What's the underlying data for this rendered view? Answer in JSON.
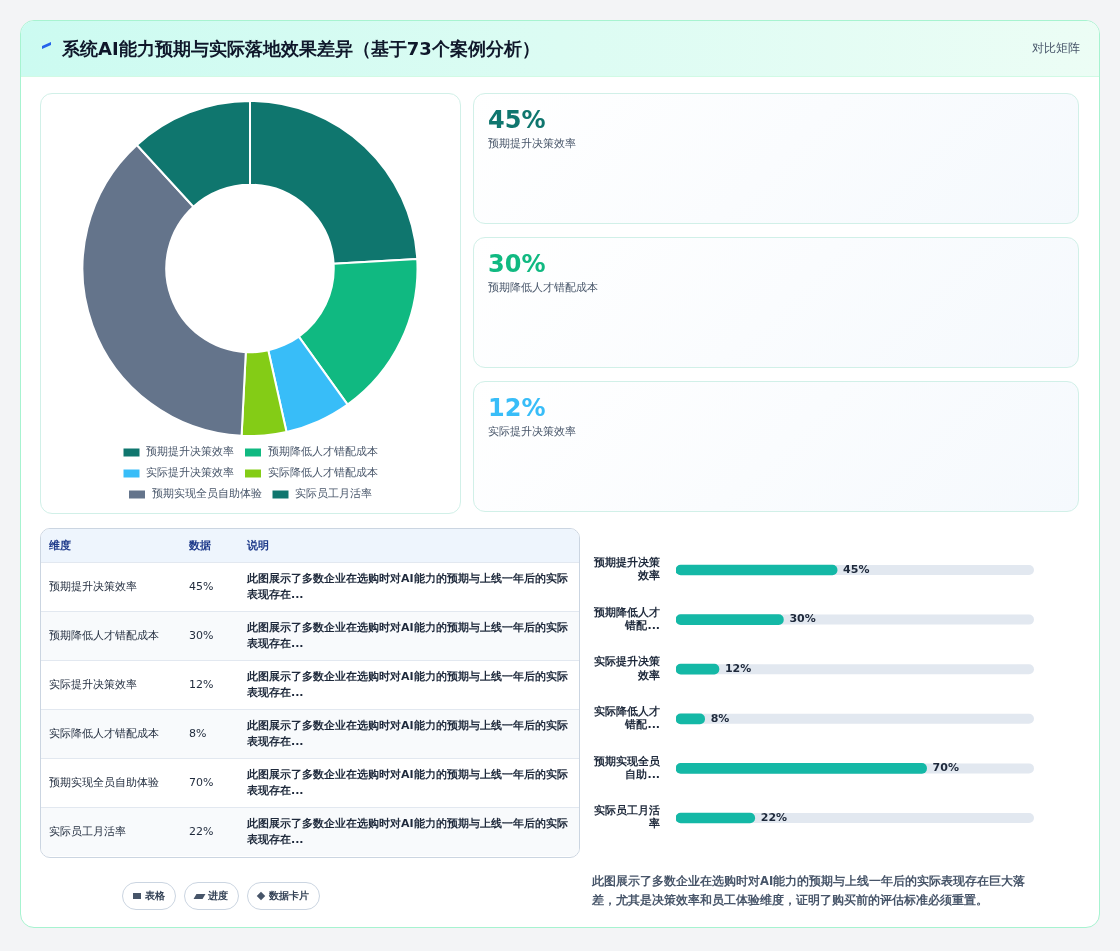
{
  "chart_data": [
    {
      "type": "other",
      "title": "系统AI能力预期与实际落地效果差异（基于73个案例分析）",
      "subtitle": "对比矩阵"
    },
    {
      "type": "donut",
      "categories": [
        "预期提升决策效率",
        "预期降低人才错配成本",
        "实际提升决策效率",
        "实际降低人才错配成本",
        "预期实现全员自助体验",
        "实际员工月活率"
      ],
      "values": [
        24.1,
        16.0,
        6.4,
        4.3,
        37.4,
        11.8
      ],
      "colors": [
        "#0f766e",
        "#10b981",
        "#38bdf8",
        "#84cc16",
        "#64748b",
        "#0f766e"
      ],
      "legend": "bottom"
    },
    {
      "type": "other",
      "annotations": [
        "45%",
        "预期提升决策效率",
        "30%",
        "预期降低人才错配成本",
        "12%",
        "实际提升决策效率"
      ],
      "colors": [
        "#0f766e",
        "#10b981",
        "#38bdf8"
      ]
    },
    {
      "type": "other",
      "annotations": [
        "维度",
        "数据",
        "说明",
        "预期提升决策效率",
        "45%",
        "此图展示了多数企业在选购时对AI能力的预期与上线一年后的实际表现存在...",
        "预期降低人才错配成本",
        "30%",
        "此图展示了多数企业在选购时对AI能力的预期与上线一年后的实际表现存在...",
        "实际提升决策效率",
        "12%",
        "此图展示了多数企业在选购时对AI能力的预期与上线一年后的实际表现存在...",
        "实际降低人才错配成本",
        "8%",
        "此图展示了多数企业在选购时对AI能力的预期与上线一年后的实际表现存在...",
        "预期实现全员自助体验",
        "70%",
        "此图展示了多数企业在选购时对AI能力的预期与上线一年后的实际表现存在...",
        "实际员工月活率",
        "22%",
        "此图展示了多数企业在选购时对AI能力的预期与上线一年后的实际表现存在...",
        "表格",
        "进度",
        "数据卡片"
      ]
    },
    {
      "type": "bar",
      "orientation": "horizontal",
      "categories": [
        "预期提升决策效率",
        "预期降低人才错配...",
        "实际提升决策效率",
        "实际降低人才错配...",
        "预期实现全员自助...",
        "实际员工月活率"
      ],
      "values": [
        45,
        30,
        12,
        8,
        70,
        22
      ],
      "value_labels": [
        "45%",
        "30%",
        "12%",
        "8%",
        "70%",
        "22%"
      ],
      "color": "#14b8a6",
      "annotations": [
        "此图展示了多数企业在选购时对AI能力的预期与上线一年后的实际表现存在巨大落差，尤其是决策效率和员工体验维度，证明了购买前的评估标准必须重置。"
      ]
    }
  ]
}
